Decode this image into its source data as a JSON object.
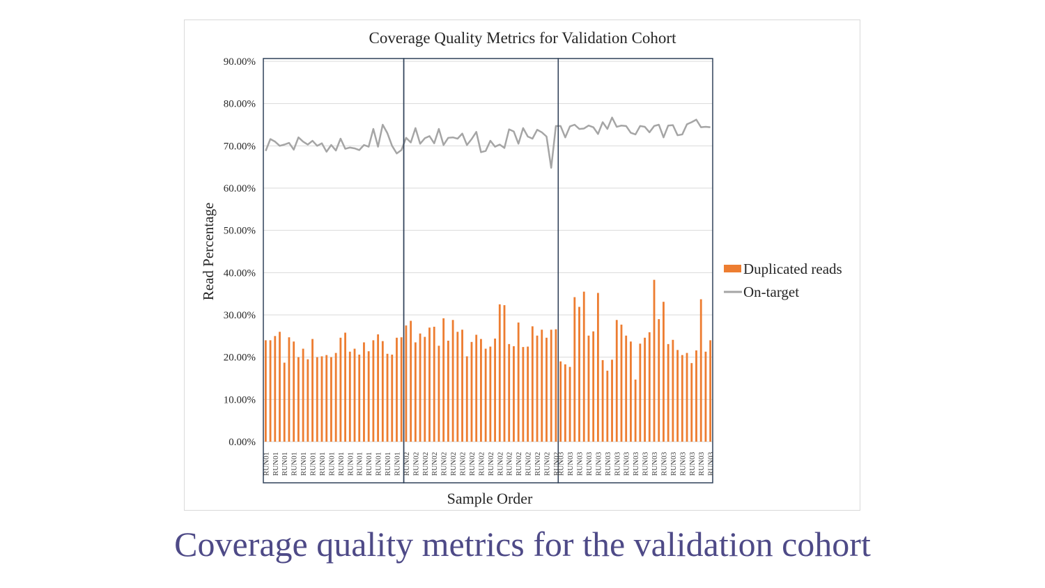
{
  "caption": "Coverage quality metrics for the validation cohort",
  "colors": {
    "bar": "#ed7d31",
    "line": "#a5a5a5",
    "run_box": "#2f4058",
    "grid": "#d9d9d9",
    "caption": "#4e4a87"
  },
  "chart_data": {
    "type": "bar",
    "title": "Coverage Quality Metrics for Validation Cohort",
    "xlabel": "Sample Order",
    "ylabel": "Read Percentage",
    "ylim": [
      0,
      90
    ],
    "yticks": [
      "0.00%",
      "10.00%",
      "20.00%",
      "30.00%",
      "40.00%",
      "50.00%",
      "60.00%",
      "70.00%",
      "80.00%",
      "90.00%"
    ],
    "grid": true,
    "legend_position": "right",
    "run_groups": [
      {
        "name": "RUN01",
        "count": 30
      },
      {
        "name": "RUN02",
        "count": 33
      },
      {
        "name": "RUN03",
        "count": 33
      }
    ],
    "series": [
      {
        "name": "Duplicated reads",
        "type": "bar",
        "values": [
          24.0,
          24.0,
          25.0,
          26.0,
          18.7,
          24.7,
          23.7,
          20.0,
          22.0,
          19.5,
          24.3,
          20.0,
          20.2,
          20.5,
          20.0,
          21.0,
          24.6,
          25.8,
          21.3,
          22.0,
          20.6,
          23.5,
          21.4,
          24.0,
          25.4,
          23.8,
          20.8,
          20.6,
          24.6,
          24.7,
          27.5,
          28.6,
          23.5,
          25.6,
          24.8,
          27.0,
          27.2,
          22.7,
          29.2,
          23.9,
          28.8,
          26.0,
          26.5,
          20.2,
          23.6,
          25.3,
          24.3,
          22.0,
          22.5,
          24.4,
          32.5,
          32.3,
          23.1,
          22.6,
          28.2,
          22.4,
          22.5,
          27.3,
          25.1,
          26.5,
          24.6,
          26.5,
          26.6,
          19.0,
          18.3,
          17.7,
          34.2,
          31.9,
          35.5,
          25.1,
          26.1,
          35.2,
          19.3,
          16.8,
          19.4,
          28.8,
          27.7,
          25.1,
          23.7,
          14.7,
          23.2,
          24.6,
          25.9,
          38.3,
          29.0,
          33.1,
          23.1,
          24.1,
          21.7,
          20.5,
          21.0,
          18.6,
          21.6,
          33.7,
          21.3,
          24.0
        ]
      },
      {
        "name": "On-target",
        "type": "line",
        "values": [
          68.8,
          71.6,
          71.0,
          70.0,
          70.3,
          70.7,
          69.1,
          72.0,
          71.0,
          70.3,
          71.2,
          70.0,
          70.6,
          68.6,
          70.2,
          68.9,
          71.7,
          69.3,
          69.6,
          69.4,
          69.0,
          70.2,
          69.8,
          74.0,
          69.8,
          75.0,
          73.0,
          70.0,
          68.2,
          69.0,
          71.9,
          70.8,
          74.2,
          70.5,
          71.8,
          72.3,
          70.6,
          74.0,
          70.2,
          71.9,
          72.0,
          71.7,
          72.9,
          70.2,
          71.6,
          73.3,
          68.5,
          68.8,
          71.2,
          69.8,
          70.3,
          69.5,
          73.9,
          73.4,
          70.5,
          74.2,
          72.2,
          71.7,
          73.8,
          73.2,
          72.2,
          64.8,
          74.7,
          74.7,
          72.0,
          74.6,
          75.0,
          74.0,
          74.1,
          74.8,
          74.4,
          72.8,
          75.6,
          74.0,
          76.7,
          74.5,
          74.8,
          74.7,
          73.1,
          72.7,
          74.7,
          74.5,
          73.2,
          74.7,
          75.0,
          72.0,
          74.8,
          74.9,
          72.5,
          72.7,
          75.1,
          75.6,
          76.2,
          74.4,
          74.5,
          74.4
        ]
      }
    ]
  }
}
